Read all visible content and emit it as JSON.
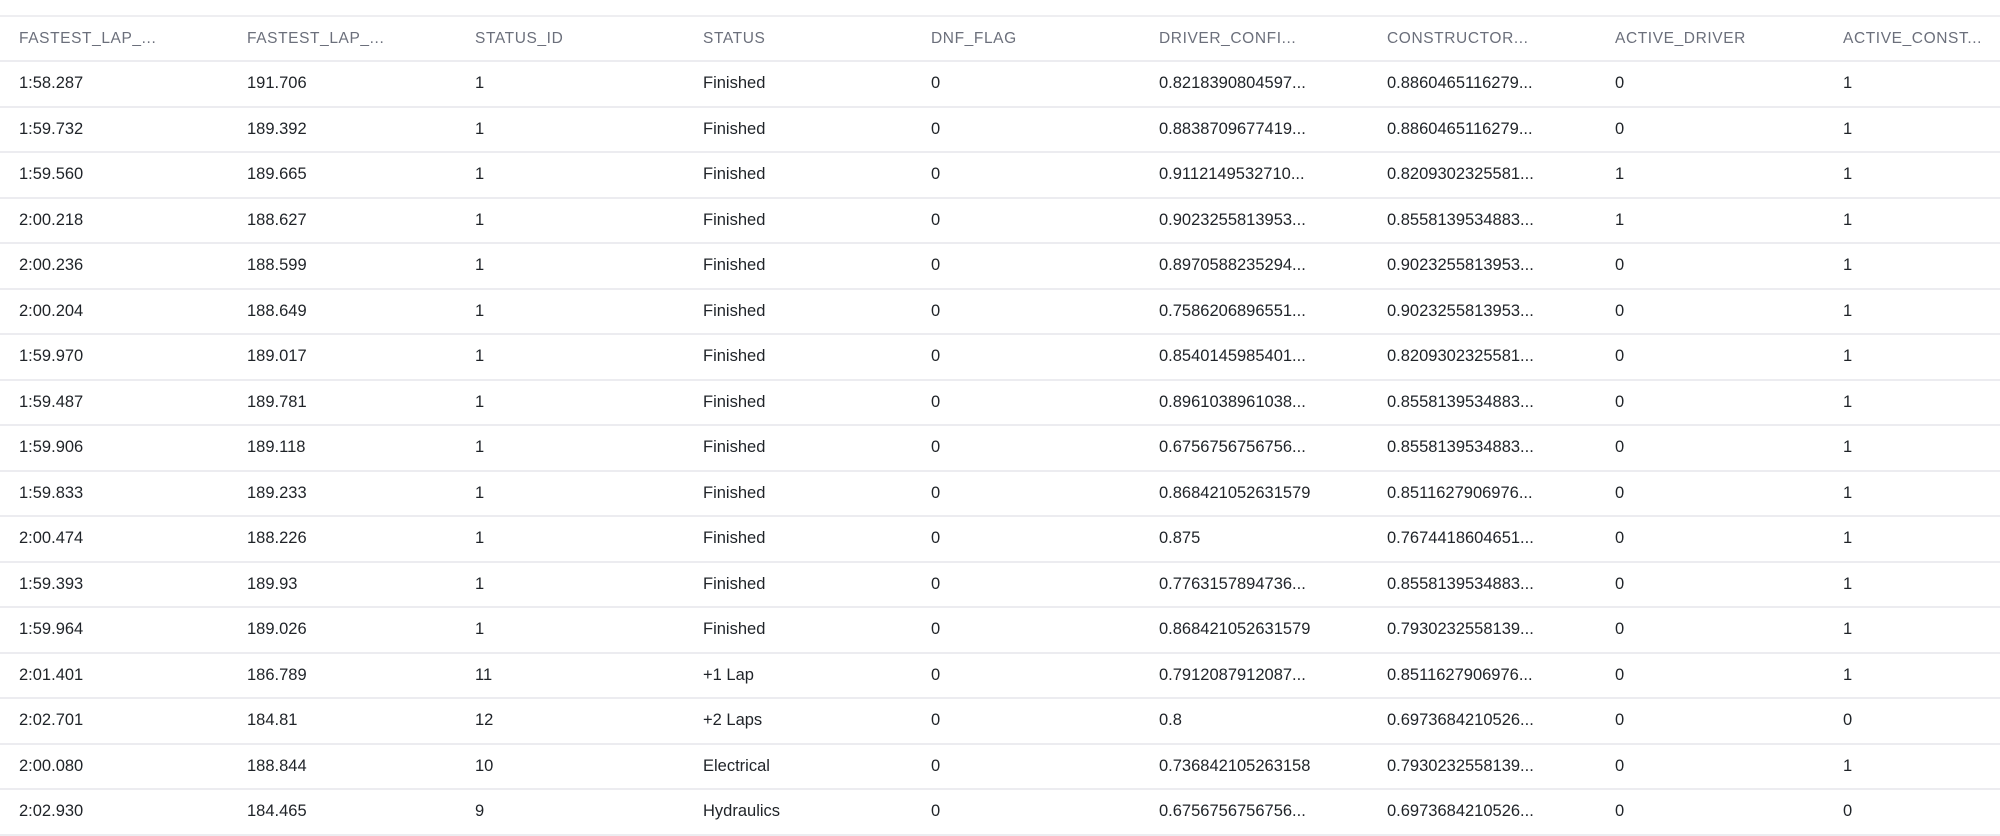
{
  "table": {
    "columns": [
      "FASTEST_LAP_...",
      "FASTEST_LAP_...",
      "STATUS_ID",
      "STATUS",
      "DNF_FLAG",
      "DRIVER_CONFI...",
      "CONSTRUCTOR...",
      "ACTIVE_DRIVER",
      "ACTIVE_CONST..."
    ],
    "rows": [
      [
        "1:58.287",
        "191.706",
        "1",
        "Finished",
        "0",
        "0.8218390804597...",
        "0.8860465116279...",
        "0",
        "1"
      ],
      [
        "1:59.732",
        "189.392",
        "1",
        "Finished",
        "0",
        "0.8838709677419...",
        "0.8860465116279...",
        "0",
        "1"
      ],
      [
        "1:59.560",
        "189.665",
        "1",
        "Finished",
        "0",
        "0.9112149532710...",
        "0.8209302325581...",
        "1",
        "1"
      ],
      [
        "2:00.218",
        "188.627",
        "1",
        "Finished",
        "0",
        "0.9023255813953...",
        "0.8558139534883...",
        "1",
        "1"
      ],
      [
        "2:00.236",
        "188.599",
        "1",
        "Finished",
        "0",
        "0.8970588235294...",
        "0.9023255813953...",
        "0",
        "1"
      ],
      [
        "2:00.204",
        "188.649",
        "1",
        "Finished",
        "0",
        "0.7586206896551...",
        "0.9023255813953...",
        "0",
        "1"
      ],
      [
        "1:59.970",
        "189.017",
        "1",
        "Finished",
        "0",
        "0.8540145985401...",
        "0.8209302325581...",
        "0",
        "1"
      ],
      [
        "1:59.487",
        "189.781",
        "1",
        "Finished",
        "0",
        "0.8961038961038...",
        "0.8558139534883...",
        "0",
        "1"
      ],
      [
        "1:59.906",
        "189.118",
        "1",
        "Finished",
        "0",
        "0.6756756756756...",
        "0.8558139534883...",
        "0",
        "1"
      ],
      [
        "1:59.833",
        "189.233",
        "1",
        "Finished",
        "0",
        "0.868421052631579",
        "0.8511627906976...",
        "0",
        "1"
      ],
      [
        "2:00.474",
        "188.226",
        "1",
        "Finished",
        "0",
        "0.875",
        "0.7674418604651...",
        "0",
        "1"
      ],
      [
        "1:59.393",
        "189.93",
        "1",
        "Finished",
        "0",
        "0.7763157894736...",
        "0.8558139534883...",
        "0",
        "1"
      ],
      [
        "1:59.964",
        "189.026",
        "1",
        "Finished",
        "0",
        "0.868421052631579",
        "0.7930232558139...",
        "0",
        "1"
      ],
      [
        "2:01.401",
        "186.789",
        "11",
        "+1 Lap",
        "0",
        "0.7912087912087...",
        "0.8511627906976...",
        "0",
        "1"
      ],
      [
        "2:02.701",
        "184.81",
        "12",
        "+2 Laps",
        "0",
        "0.8",
        "0.6973684210526...",
        "0",
        "0"
      ],
      [
        "2:00.080",
        "188.844",
        "10",
        "Electrical",
        "0",
        "0.736842105263158",
        "0.7930232558139...",
        "0",
        "1"
      ],
      [
        "2:02.930",
        "184.465",
        "9",
        "Hydraulics",
        "0",
        "0.6756756756756...",
        "0.6973684210526...",
        "0",
        "0"
      ]
    ]
  }
}
